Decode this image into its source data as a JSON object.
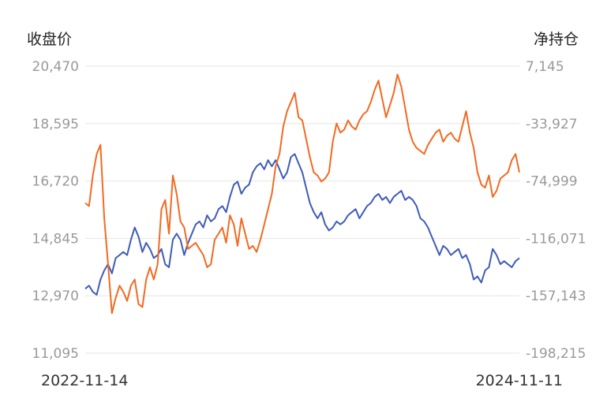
{
  "chart_data": {
    "type": "line",
    "left_axis_title": "收盘价",
    "right_axis_title": "净持仓",
    "x_start_label": "2022-11-14",
    "x_end_label": "2024-11-11",
    "left_ticks": [
      "20,470",
      "18,595",
      "16,720",
      "14,845",
      "12,970",
      "11,095"
    ],
    "right_ticks": [
      "7,145",
      "-33,927",
      "-74,999",
      "-116,071",
      "-157,143",
      "-198,215"
    ],
    "ylim_left": [
      11095,
      20470
    ],
    "ylim_right": [
      -198215,
      7145
    ],
    "grid": true,
    "series": [
      {
        "color": "#3f5bb8",
        "axis": "left",
        "values": [
          13200,
          13300,
          13100,
          13000,
          13500,
          13800,
          14000,
          13700,
          14200,
          14300,
          14400,
          14300,
          14800,
          15200,
          14900,
          14400,
          14700,
          14500,
          14200,
          14300,
          14500,
          14000,
          13900,
          14800,
          15000,
          14800,
          14300,
          14700,
          15000,
          15300,
          15400,
          15200,
          15600,
          15400,
          15500,
          15800,
          15900,
          15700,
          16200,
          16600,
          16700,
          16300,
          16500,
          16600,
          17000,
          17200,
          17300,
          17100,
          17400,
          17200,
          17400,
          17100,
          16800,
          17000,
          17500,
          17600,
          17300,
          17000,
          16500,
          16000,
          15700,
          15500,
          15700,
          15300,
          15100,
          15200,
          15400,
          15300,
          15400,
          15600,
          15700,
          15800,
          15500,
          15700,
          15900,
          16000,
          16200,
          16300,
          16100,
          16200,
          16000,
          16200,
          16300,
          16400,
          16100,
          16200,
          16100,
          15900,
          15500,
          15400,
          15200,
          14900,
          14600,
          14300,
          14600,
          14500,
          14300,
          14400,
          14500,
          14200,
          14300,
          14000,
          13500,
          13600,
          13400,
          13800,
          13900,
          14500,
          14300,
          14000,
          14100,
          14000,
          13900,
          14100,
          14200
        ]
      },
      {
        "color": "#f26a21",
        "axis": "left",
        "values": [
          16000,
          15900,
          16900,
          17600,
          17900,
          15500,
          14000,
          12400,
          12900,
          13300,
          13100,
          12800,
          13300,
          13500,
          12700,
          12600,
          13500,
          13900,
          13500,
          14000,
          15800,
          16100,
          15000,
          16900,
          16300,
          15400,
          15200,
          14500,
          14600,
          14700,
          14500,
          14300,
          13900,
          14000,
          14800,
          15000,
          15200,
          14700,
          15600,
          15300,
          14600,
          15500,
          15000,
          14500,
          14600,
          14400,
          14800,
          15300,
          15800,
          16300,
          17200,
          17600,
          18500,
          19000,
          19300,
          19600,
          18800,
          18700,
          18100,
          17500,
          17000,
          16900,
          16700,
          16800,
          17000,
          18000,
          18600,
          18300,
          18400,
          18700,
          18500,
          18400,
          18700,
          18900,
          19000,
          19300,
          19700,
          20000,
          19400,
          18800,
          19200,
          19600,
          20200,
          19800,
          19100,
          18400,
          18000,
          17800,
          17700,
          17600,
          17900,
          18100,
          18300,
          18400,
          18000,
          18200,
          18300,
          18100,
          18000,
          18500,
          19000,
          18300,
          17800,
          17000,
          16600,
          16500,
          16900,
          16200,
          16400,
          16800,
          16900,
          17000,
          17400,
          17600,
          17000
        ]
      }
    ]
  }
}
